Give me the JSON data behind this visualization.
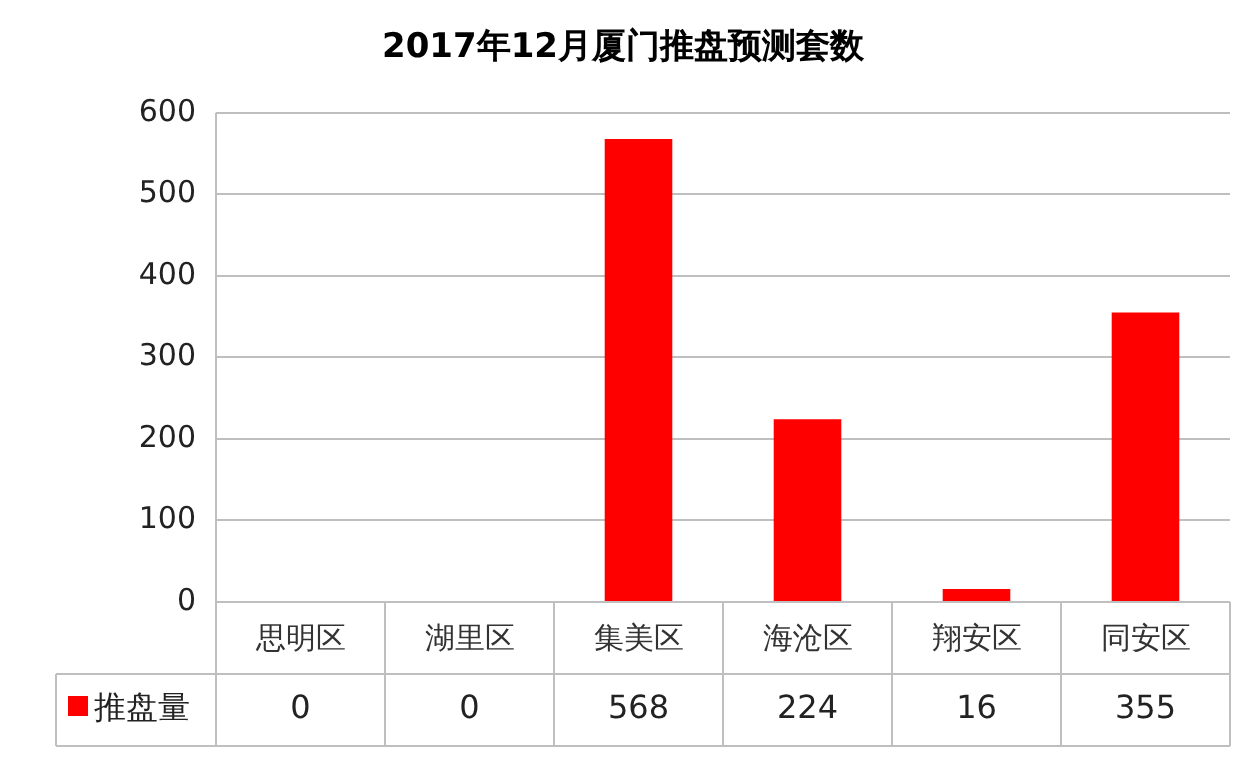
{
  "chart_data": {
    "type": "bar",
    "title": "2017年12月厦门推盘预测套数",
    "categories": [
      "思明区",
      "湖里区",
      "集美区",
      "海沧区",
      "翔安区",
      "同安区"
    ],
    "series": [
      {
        "name": "推盘量",
        "color": "#ff0000",
        "values": [
          0,
          0,
          568,
          224,
          16,
          355
        ]
      }
    ],
    "ylim": [
      0,
      600
    ],
    "yticks": [
      0,
      100,
      200,
      300,
      400,
      500,
      600
    ],
    "grid": "y",
    "legend": "bottom",
    "data_labels": true
  }
}
